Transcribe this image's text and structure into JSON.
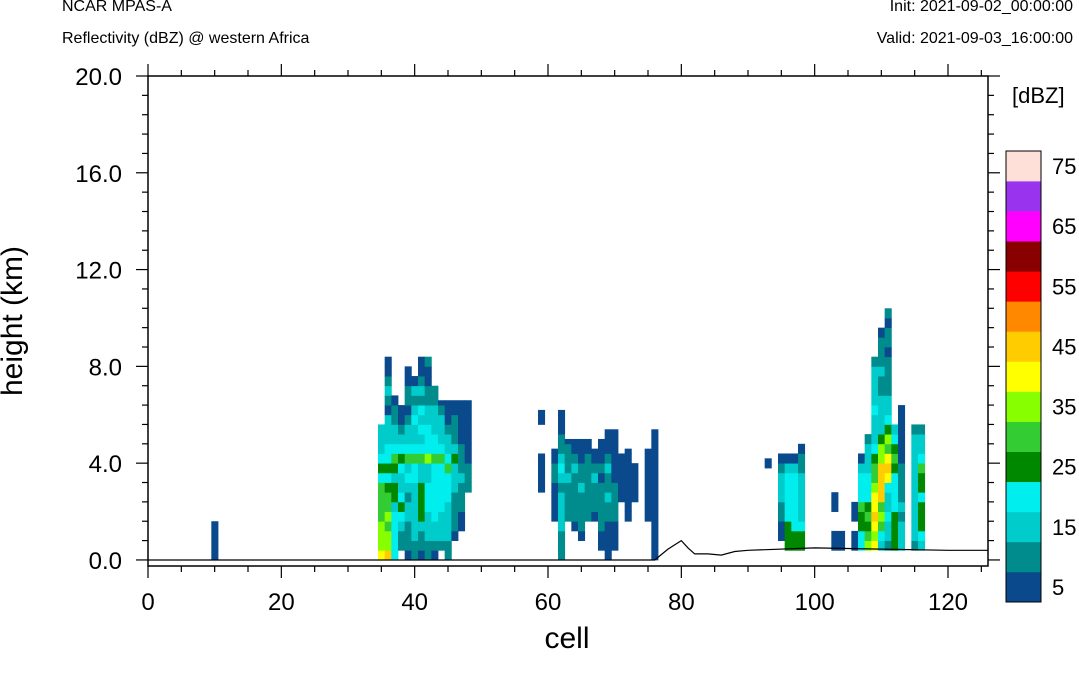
{
  "header": {
    "model": "NCAR MPAS-A",
    "field": "Reflectivity (dBZ) @ western Africa",
    "init": "Init: 2021-09-02_00:00:00",
    "valid": "Valid: 2021-09-03_16:00:00"
  },
  "chart_data": {
    "type": "heatmap",
    "xlabel": "cell",
    "ylabel": "height (km)",
    "xlim": [
      0,
      126
    ],
    "ylim": [
      -0.25,
      20.0
    ],
    "xticks": [
      0,
      20,
      40,
      60,
      80,
      100,
      120
    ],
    "yticks": [
      0.0,
      4.0,
      8.0,
      12.0,
      16.0,
      20.0
    ],
    "ytick_labels": [
      "0.0",
      "4.0",
      "8.0",
      "12.0",
      "16.0",
      "20.0"
    ],
    "grid": false,
    "colorbar": {
      "units": "[dBZ]",
      "position": "right",
      "levels": [
        5,
        10,
        15,
        20,
        25,
        30,
        35,
        40,
        45,
        50,
        55,
        60,
        65,
        70,
        75
      ],
      "labels": [
        "5",
        "15",
        "25",
        "35",
        "45",
        "55",
        "65",
        "75"
      ],
      "colors": [
        "#0a4a8c",
        "#008c8c",
        "#00cccc",
        "#00eeee",
        "#008800",
        "#33cc33",
        "#88ff00",
        "#ffff00",
        "#ffcc00",
        "#ff8800",
        "#ff0000",
        "#880000",
        "#ff00ff",
        "#9933ee",
        "#ffe0d8"
      ]
    },
    "terrain_km": {
      "x": [
        0,
        76,
        78,
        80,
        81,
        82,
        84,
        86,
        88,
        90,
        100,
        110,
        120,
        126
      ],
      "y": [
        0.0,
        0.0,
        0.45,
        0.8,
        0.5,
        0.25,
        0.25,
        0.2,
        0.35,
        0.4,
        0.5,
        0.45,
        0.4,
        0.4
      ]
    },
    "cells": [
      {
        "x": 10,
        "z0": 0.0,
        "z1": 1.6,
        "dbz": [
          5,
          5,
          5,
          5
        ]
      },
      {
        "x": 35,
        "z0": 0.0,
        "z1": 5.6,
        "dbz": [
          40,
          35,
          35,
          35,
          30,
          30,
          30,
          30,
          20,
          25,
          20,
          15,
          15,
          15
        ]
      },
      {
        "x": 36,
        "z0": 0.0,
        "z1": 8.6,
        "dbz": [
          45,
          35,
          35,
          30,
          35,
          30,
          30,
          25,
          20,
          25,
          20,
          20,
          15,
          15,
          15,
          5,
          10,
          15,
          10,
          5,
          5
        ]
      },
      {
        "x": 37,
        "z0": 0.0,
        "z1": 7.0,
        "dbz": [
          20,
          20,
          20,
          20,
          20,
          15,
          25,
          25,
          15,
          25,
          30,
          20,
          15,
          15,
          10,
          10,
          5
        ]
      },
      {
        "x": 38,
        "z0": 0.4,
        "z1": 6.6,
        "dbz": [
          10,
          10,
          15,
          20,
          25,
          20,
          15,
          15,
          20,
          25,
          20,
          15,
          10,
          5,
          5
        ]
      },
      {
        "x": 39,
        "z0": 0.0,
        "z1": 8.2,
        "dbz": [
          5,
          10,
          10,
          10,
          15,
          15,
          10,
          15,
          20,
          15,
          30,
          20,
          15,
          15,
          10,
          5,
          10,
          10,
          5,
          5
        ]
      },
      {
        "x": 40,
        "z0": 0.0,
        "z1": 7.8,
        "dbz": [
          10,
          10,
          15,
          15,
          15,
          15,
          15,
          15,
          20,
          20,
          30,
          20,
          15,
          15,
          20,
          15,
          10,
          15,
          5
        ]
      },
      {
        "x": 41,
        "z0": 0.0,
        "z1": 8.6,
        "dbz": [
          5,
          10,
          10,
          15,
          25,
          25,
          25,
          25,
          15,
          15,
          30,
          20,
          15,
          20,
          15,
          20,
          10,
          15,
          10,
          5,
          5
        ]
      },
      {
        "x": 42,
        "z0": 0.0,
        "z1": 8.6,
        "dbz": [
          10,
          10,
          15,
          15,
          15,
          20,
          20,
          20,
          15,
          15,
          35,
          20,
          20,
          20,
          15,
          15,
          10,
          10,
          5,
          5,
          10
        ]
      },
      {
        "x": 43,
        "z0": 0.0,
        "z1": 7.4,
        "dbz": [
          5,
          10,
          15,
          15,
          20,
          20,
          20,
          20,
          20,
          20,
          30,
          20,
          20,
          15,
          15,
          15,
          10,
          10
        ]
      },
      {
        "x": 44,
        "z0": 0.4,
        "z1": 6.6,
        "dbz": [
          10,
          15,
          15,
          15,
          20,
          20,
          20,
          20,
          20,
          30,
          20,
          15,
          15,
          15,
          10,
          5
        ]
      },
      {
        "x": 45,
        "z0": 0.0,
        "z1": 6.6,
        "dbz": [
          10,
          10,
          15,
          15,
          15,
          15,
          20,
          20,
          20,
          30,
          20,
          15,
          15,
          10,
          5,
          5,
          5
        ]
      },
      {
        "x": 46,
        "z0": 0.8,
        "z1": 6.6,
        "dbz": [
          5,
          10,
          10,
          10,
          10,
          15,
          15,
          15,
          25,
          15,
          10,
          10,
          10,
          5,
          5
        ]
      },
      {
        "x": 47,
        "z0": 1.2,
        "z1": 6.6,
        "dbz": [
          5,
          5,
          10,
          10,
          10,
          15,
          10,
          10,
          10,
          5,
          5,
          5,
          5,
          5
        ]
      },
      {
        "x": 48,
        "z0": 2.8,
        "z1": 6.6,
        "dbz": [
          10,
          10,
          10,
          5,
          5,
          5,
          5,
          5,
          5,
          5
        ]
      },
      {
        "x": 59,
        "z0": 2.8,
        "z1": 6.2,
        "dbz": [
          5,
          5,
          5,
          5,
          0,
          0,
          0,
          5,
          5
        ]
      },
      {
        "x": 61,
        "z0": 1.6,
        "z1": 4.6,
        "dbz": [
          5,
          5,
          5,
          5,
          10,
          10,
          5,
          5
        ]
      },
      {
        "x": 62,
        "z0": 0.0,
        "z1": 6.2,
        "dbz": [
          10,
          10,
          10,
          15,
          15,
          15,
          15,
          10,
          15,
          20,
          15,
          10,
          10,
          5,
          5,
          5
        ]
      },
      {
        "x": 63,
        "z0": 1.6,
        "z1": 5.0,
        "dbz": [
          10,
          10,
          10,
          10,
          15,
          10,
          10,
          10,
          5
        ]
      },
      {
        "x": 64,
        "z0": 1.2,
        "z1": 5.0,
        "dbz": [
          5,
          10,
          10,
          10,
          10,
          10,
          15,
          10,
          5,
          5
        ]
      },
      {
        "x": 65,
        "z0": 0.8,
        "z1": 5.0,
        "dbz": [
          5,
          10,
          10,
          10,
          10,
          15,
          10,
          10,
          5,
          5,
          5
        ]
      },
      {
        "x": 66,
        "z0": 1.6,
        "z1": 5.0,
        "dbz": [
          10,
          10,
          10,
          10,
          10,
          10,
          10,
          5,
          5
        ]
      },
      {
        "x": 67,
        "z0": 1.6,
        "z1": 4.6,
        "dbz": [
          5,
          10,
          10,
          10,
          15,
          10,
          5,
          5
        ]
      },
      {
        "x": 68,
        "z0": 0.4,
        "z1": 5.0,
        "dbz": [
          5,
          5,
          10,
          10,
          10,
          10,
          10,
          5,
          10,
          5,
          5,
          5
        ]
      },
      {
        "x": 69,
        "z0": 0.0,
        "z1": 5.4,
        "dbz": [
          5,
          5,
          5,
          5,
          10,
          10,
          15,
          10,
          10,
          15,
          10,
          5,
          5,
          5
        ]
      },
      {
        "x": 70,
        "z0": 0.4,
        "z1": 5.4,
        "dbz": [
          5,
          5,
          5,
          10,
          10,
          10,
          10,
          5,
          5,
          5,
          5,
          5,
          5
        ]
      },
      {
        "x": 71,
        "z0": 2.4,
        "z1": 4.6,
        "dbz": [
          5,
          5,
          5,
          5,
          5
        ]
      },
      {
        "x": 72,
        "z0": 1.6,
        "z1": 4.6,
        "dbz": [
          5,
          5,
          5,
          5,
          5,
          5,
          5,
          5
        ]
      },
      {
        "x": 73,
        "z0": 2.4,
        "z1": 4.2,
        "dbz": [
          5,
          5,
          5,
          5
        ]
      },
      {
        "x": 75,
        "z0": 1.6,
        "z1": 4.6,
        "dbz": [
          5,
          5,
          5,
          5,
          5,
          5,
          5,
          5
        ]
      },
      {
        "x": 76,
        "z0": 0.0,
        "z1": 5.4,
        "dbz": [
          5,
          5,
          5,
          5,
          5,
          5,
          5,
          5,
          5,
          5,
          5,
          5,
          5,
          5
        ]
      },
      {
        "x": 93,
        "z0": 3.8,
        "z1": 4.2,
        "dbz": [
          5
        ]
      },
      {
        "x": 95,
        "z0": 0.8,
        "z1": 4.6,
        "dbz": [
          5,
          5,
          10,
          10,
          15,
          15,
          15,
          10,
          5
        ]
      },
      {
        "x": 96,
        "z0": 0.4,
        "z1": 4.6,
        "dbz": [
          25,
          25,
          25,
          20,
          20,
          20,
          20,
          20,
          15,
          5
        ]
      },
      {
        "x": 97,
        "z0": 0.4,
        "z1": 4.6,
        "dbz": [
          25,
          25,
          20,
          20,
          20,
          20,
          20,
          20,
          15,
          5
        ]
      },
      {
        "x": 98,
        "z0": 0.4,
        "z1": 5.0,
        "dbz": [
          25,
          25,
          20,
          15,
          15,
          15,
          15,
          15,
          10,
          10,
          5
        ]
      },
      {
        "x": 103,
        "z0": 0.4,
        "z1": 3.0,
        "dbz": [
          5,
          5,
          0,
          0,
          5,
          5
        ]
      },
      {
        "x": 104,
        "z0": 0.4,
        "z1": 1.4,
        "dbz": [
          5,
          5
        ]
      },
      {
        "x": 106,
        "z0": 0.4,
        "z1": 2.6,
        "dbz": [
          5,
          5,
          0,
          5,
          5
        ]
      },
      {
        "x": 107,
        "z0": 0.4,
        "z1": 4.6,
        "dbz": [
          20,
          20,
          25,
          25,
          30,
          20,
          20,
          20,
          15,
          5
        ]
      },
      {
        "x": 108,
        "z0": 0.4,
        "z1": 5.4,
        "dbz": [
          35,
          30,
          25,
          30,
          25,
          20,
          20,
          20,
          15,
          15,
          15,
          10
        ]
      },
      {
        "x": 109,
        "z0": 0.4,
        "z1": 8.6,
        "dbz": [
          40,
          35,
          40,
          45,
          40,
          40,
          35,
          30,
          30,
          25,
          20,
          15,
          15,
          15,
          20,
          15,
          15,
          15,
          15,
          10
        ]
      },
      {
        "x": 110,
        "z0": 0.4,
        "z1": 9.8,
        "dbz": [
          15,
          20,
          30,
          35,
          30,
          45,
          45,
          45,
          45,
          35,
          35,
          25,
          15,
          15,
          15,
          15,
          10,
          10,
          15,
          10,
          10,
          10,
          5
        ]
      },
      {
        "x": 111,
        "z0": 0.4,
        "z1": 10.6,
        "dbz": [
          10,
          15,
          15,
          20,
          15,
          15,
          20,
          40,
          45,
          40,
          30,
          35,
          25,
          20,
          15,
          15,
          10,
          10,
          10,
          10,
          5,
          10,
          10,
          5,
          10
        ]
      },
      {
        "x": 112,
        "z0": 0.4,
        "z1": 5.8,
        "dbz": [
          25,
          25,
          25,
          25,
          20,
          20,
          20,
          20,
          25,
          30,
          25,
          20,
          15
        ]
      },
      {
        "x": 113,
        "z0": 0.4,
        "z1": 6.6,
        "dbz": [
          15,
          15,
          15,
          10,
          15,
          10,
          10,
          10,
          10,
          5,
          5,
          5,
          5,
          5,
          5
        ]
      },
      {
        "x": 115,
        "z0": 0.4,
        "z1": 5.8,
        "dbz": [
          10,
          15,
          15,
          15,
          15,
          15,
          15,
          15,
          15,
          15,
          15,
          15,
          10
        ]
      },
      {
        "x": 116,
        "z0": 0.4,
        "z1": 5.8,
        "dbz": [
          15,
          20,
          25,
          25,
          25,
          20,
          25,
          25,
          30,
          20,
          15,
          15,
          10
        ]
      }
    ]
  }
}
